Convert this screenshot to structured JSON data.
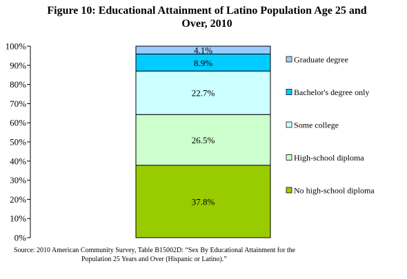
{
  "chart_data": {
    "type": "bar",
    "stacked": true,
    "title": "Figure 10: Educational Attainment of Latino Population Age 25 and Over, 2010",
    "title_line1": "Figure 10: Educational Attainment of Latino Population Age 25 and",
    "title_line2": "Over, 2010",
    "xlabel": "",
    "ylabel": "",
    "ylim": [
      0,
      100
    ],
    "y_ticks": [
      "0%",
      "10%",
      "20%",
      "30%",
      "40%",
      "50%",
      "60%",
      "70%",
      "80%",
      "90%",
      "100%"
    ],
    "grid": false,
    "legend_position": "right",
    "categories": [
      ""
    ],
    "series": [
      {
        "name": "No high-school diploma",
        "values": [
          37.8
        ],
        "label": "37.8%",
        "color": "#99cc00"
      },
      {
        "name": "High-school diploma",
        "values": [
          26.5
        ],
        "label": "26.5%",
        "color": "#ccffcc"
      },
      {
        "name": "Some college",
        "values": [
          22.7
        ],
        "label": "22.7%",
        "color": "#ccffff"
      },
      {
        "name": "Bachelor's degree only",
        "values": [
          8.9
        ],
        "label": "8.9%",
        "color": "#00ccff"
      },
      {
        "name": "Graduate degree",
        "values": [
          4.1
        ],
        "label": "4.1%",
        "color": "#99ccff"
      }
    ]
  },
  "source": {
    "line1": "Source: 2010 American Community Survey, Table B15002D: “Sex By Educational Attainment for the",
    "line2": "Population 25 Years and Over (Hispanic or Latino).”"
  }
}
